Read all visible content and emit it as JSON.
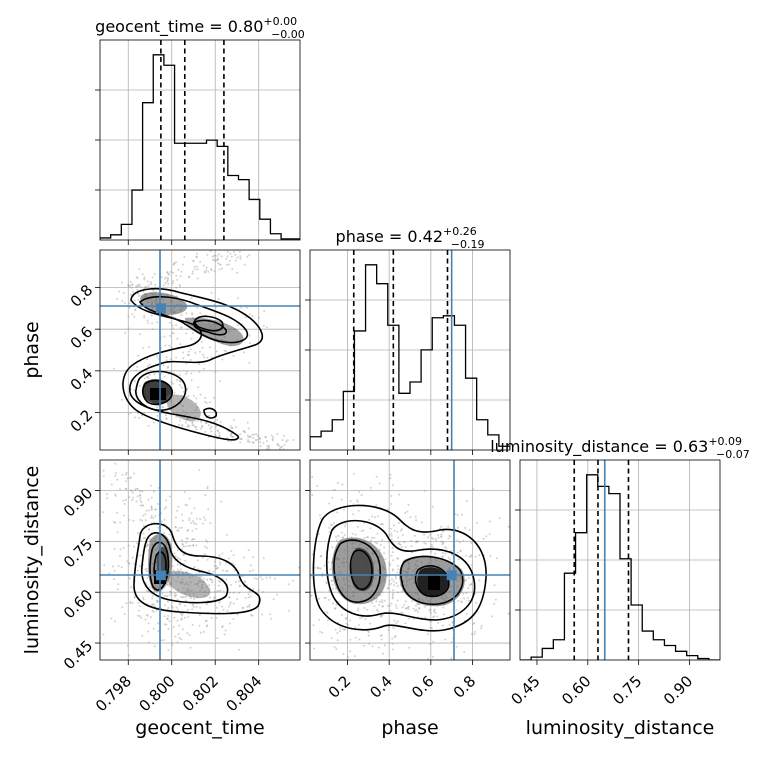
{
  "colors": {
    "truth": "#4682b4",
    "hist": "#000000",
    "grid": "#b0b0b0",
    "scatter": "#9a9a9a"
  },
  "titles": [
    {
      "id": "geocent_time",
      "name": "geocent_time",
      "value": "0.80",
      "plus": "+0.00",
      "minus": "−0.00"
    },
    {
      "id": "phase",
      "name": "phase",
      "value": "0.42",
      "plus": "+0.26",
      "minus": "−0.19"
    },
    {
      "id": "luminosity_distance",
      "name": "luminosity_distance",
      "value": "0.63",
      "plus": "+0.09",
      "minus": "−0.07"
    }
  ],
  "axes": {
    "geocent_time": {
      "label": "geocent_time",
      "ticks": [
        "0.798",
        "0.800",
        "0.802",
        "0.804"
      ]
    },
    "phase": {
      "label": "phase",
      "ticks": [
        "0.2",
        "0.4",
        "0.6",
        "0.8"
      ]
    },
    "luminosity_distance": {
      "label": "luminosity_distance",
      "ticks": [
        "0.45",
        "0.60",
        "0.75",
        "0.90"
      ]
    }
  },
  "chart_data": {
    "type": "corner",
    "parameters": [
      "geocent_time",
      "phase",
      "luminosity_distance"
    ],
    "truths": {
      "geocent_time": 0.7995,
      "phase": 0.7,
      "luminosity_distance": 0.65
    },
    "quantiles": {
      "geocent_time": [
        0.7995,
        0.8006,
        0.8024
      ],
      "phase": [
        0.23,
        0.42,
        0.68
      ],
      "luminosity_distance": [
        0.56,
        0.63,
        0.72
      ]
    },
    "ranges": {
      "geocent_time": [
        0.7967,
        0.8059
      ],
      "phase": [
        0.02,
        0.98
      ],
      "luminosity_distance": [
        0.4,
        0.99
      ]
    },
    "grid": true,
    "histograms": {
      "geocent_time": {
        "edges": [
          0.7967,
          0.79719,
          0.79768,
          0.79817,
          0.79866,
          0.79915,
          0.79964,
          0.80013,
          0.80062,
          0.80111,
          0.8016,
          0.80209,
          0.80258,
          0.80307,
          0.80356,
          0.80405,
          0.80454,
          0.80503,
          0.8059
        ],
        "counts": [
          2,
          5,
          15,
          48,
          132,
          178,
          168,
          93,
          93,
          93,
          96,
          90,
          62,
          58,
          39,
          20,
          6,
          1
        ]
      },
      "phase": {
        "edges": [
          0.02,
          0.0733,
          0.1267,
          0.18,
          0.2333,
          0.2867,
          0.34,
          0.3933,
          0.4467,
          0.5,
          0.5533,
          0.6067,
          0.66,
          0.7133,
          0.7667,
          0.82,
          0.8733,
          0.9267,
          0.98
        ],
        "counts": [
          7,
          10,
          16,
          31,
          63,
          98,
          88,
          66,
          30,
          36,
          53,
          70,
          71,
          66,
          38,
          16,
          8,
          2
        ]
      },
      "luminosity_distance": {
        "edges": [
          0.4,
          0.4328,
          0.4656,
          0.4983,
          0.5311,
          0.5639,
          0.5967,
          0.6294,
          0.6622,
          0.695,
          0.7278,
          0.7606,
          0.7933,
          0.8261,
          0.8589,
          0.8917,
          0.9244,
          0.9572,
          0.99
        ],
        "counts": [
          0,
          2,
          8,
          14,
          60,
          88,
          128,
          120,
          115,
          70,
          38,
          20,
          14,
          10,
          6,
          3,
          1,
          0
        ]
      }
    }
  }
}
